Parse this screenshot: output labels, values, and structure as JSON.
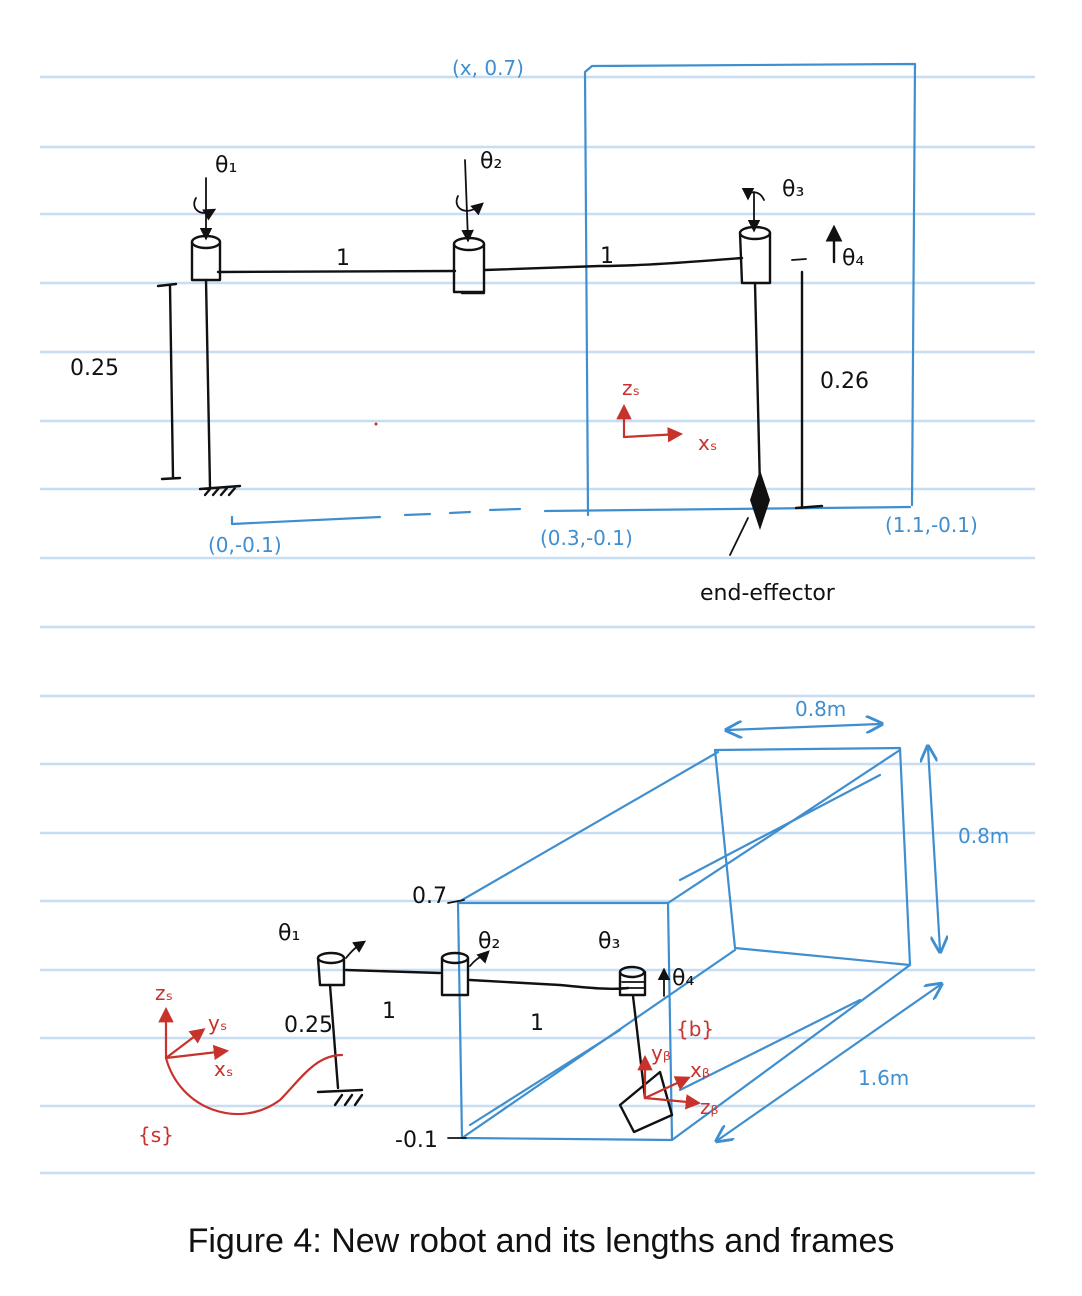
{
  "caption": "Figure 4: New robot and its lengths and frames",
  "colors": {
    "ink": "#111111",
    "frame_box": "#3f8fd0",
    "frames": "#c8322c",
    "ruled_lines": "#c7def2"
  },
  "top_view": {
    "joints": {
      "theta1": "θ₁",
      "theta2": "θ₂",
      "theta3": "θ₃",
      "theta4": "θ₄"
    },
    "link_lengths": {
      "link1": "1",
      "link2": "1",
      "base_height": "0.25",
      "tool_height": "0.26"
    },
    "frame_s": {
      "z": "zₛ",
      "x": "xₛ"
    },
    "box_corner": "(x, 0.7)",
    "points": {
      "p1": "(0,-0.1)",
      "p2": "(0.3,-0.1)",
      "p3": "(1.1,-0.1)"
    },
    "end_effector": "end-effector"
  },
  "iso_view": {
    "joints": {
      "theta1": "θ₁",
      "theta2": "θ₂",
      "theta3": "θ₃",
      "theta4": "θ₄"
    },
    "link_lengths": {
      "link1": "1",
      "link2": "1",
      "base_height": "0.25"
    },
    "box": {
      "top": "0.7",
      "bottom": "-0.1",
      "width": "0.8m",
      "height": "0.8m",
      "depth": "1.6m"
    },
    "frame_s": {
      "z": "zₛ",
      "y": "yₛ",
      "x": "xₛ",
      "name": "{s}"
    },
    "frame_b": {
      "y": "yᵦ",
      "x": "xᵦ",
      "z": "zᵦ",
      "name": "{b}"
    }
  }
}
